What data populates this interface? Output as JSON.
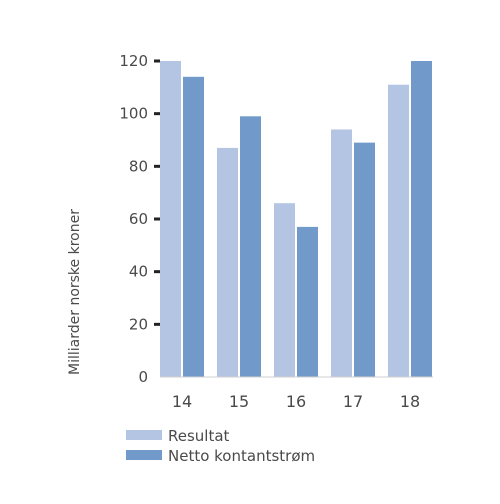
{
  "chart_data": {
    "type": "bar",
    "categories": [
      "14",
      "15",
      "16",
      "17",
      "18"
    ],
    "series": [
      {
        "name": "Resultat",
        "values": [
          120,
          87,
          66,
          94,
          111
        ],
        "color": "#b4c5e4"
      },
      {
        "name": "Netto kontantstrøm",
        "values": [
          114,
          99,
          57,
          89,
          120
        ],
        "color": "#7199c9"
      }
    ],
    "xlabel": "",
    "ylabel": "Milliarder norske kroner",
    "ylim": [
      0,
      120
    ],
    "yticks": [
      0,
      20,
      40,
      60,
      80,
      100,
      120
    ],
    "grid": false,
    "legend": "bottom"
  }
}
